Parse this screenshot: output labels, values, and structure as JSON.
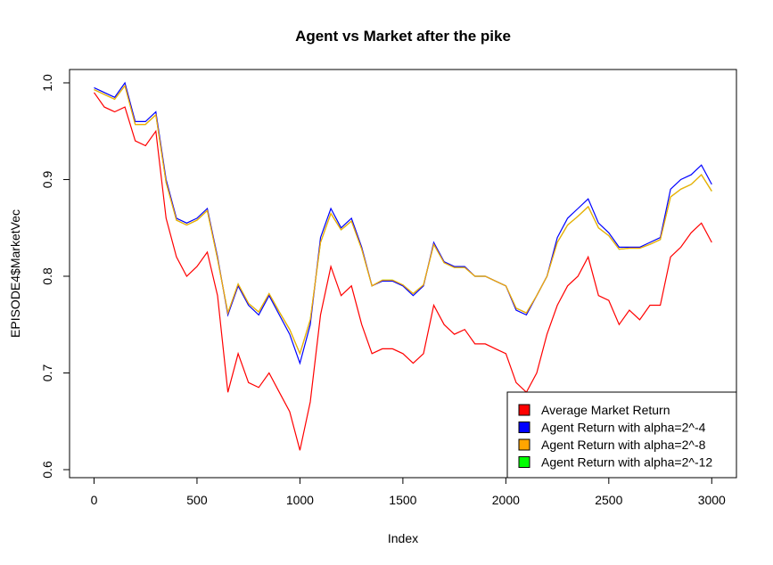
{
  "chart_data": {
    "type": "line",
    "title": "Agent vs Market after the pike",
    "xlabel": "Index",
    "ylabel": "EPISODE4$MarketVec",
    "x": [
      0,
      50,
      100,
      150,
      200,
      250,
      300,
      350,
      400,
      450,
      500,
      550,
      600,
      650,
      700,
      750,
      800,
      850,
      900,
      950,
      1000,
      1050,
      1100,
      1150,
      1200,
      1250,
      1300,
      1350,
      1400,
      1450,
      1500,
      1550,
      1600,
      1650,
      1700,
      1750,
      1800,
      1850,
      1900,
      1950,
      2000,
      2050,
      2100,
      2150,
      2200,
      2250,
      2300,
      2350,
      2400,
      2450,
      2500,
      2550,
      2600,
      2650,
      2700,
      2750,
      2800,
      2850,
      2900,
      2950,
      3000
    ],
    "series": [
      {
        "name": "Average Market Return",
        "color": "#ff0000",
        "values": [
          0.99,
          0.975,
          0.97,
          0.975,
          0.94,
          0.935,
          0.95,
          0.86,
          0.82,
          0.8,
          0.81,
          0.825,
          0.78,
          0.68,
          0.72,
          0.69,
          0.685,
          0.7,
          0.68,
          0.66,
          0.62,
          0.67,
          0.76,
          0.81,
          0.78,
          0.79,
          0.75,
          0.72,
          0.725,
          0.725,
          0.72,
          0.71,
          0.72,
          0.77,
          0.75,
          0.74,
          0.745,
          0.73,
          0.73,
          0.725,
          0.72,
          0.69,
          0.68,
          0.7,
          0.74,
          0.77,
          0.79,
          0.8,
          0.82,
          0.78,
          0.775,
          0.75,
          0.765,
          0.755,
          0.77,
          0.77,
          0.82,
          0.83,
          0.845,
          0.855,
          0.835
        ]
      },
      {
        "name": "Agent Return with alpha=2^-4",
        "color": "#0000ff",
        "values": [
          0.995,
          0.99,
          0.985,
          1.0,
          0.96,
          0.96,
          0.97,
          0.9,
          0.86,
          0.855,
          0.86,
          0.87,
          0.82,
          0.76,
          0.79,
          0.77,
          0.76,
          0.78,
          0.76,
          0.74,
          0.71,
          0.75,
          0.84,
          0.87,
          0.85,
          0.86,
          0.83,
          0.79,
          0.795,
          0.795,
          0.79,
          0.78,
          0.79,
          0.835,
          0.815,
          0.81,
          0.81,
          0.8,
          0.8,
          0.795,
          0.79,
          0.765,
          0.76,
          0.78,
          0.8,
          0.84,
          0.86,
          0.87,
          0.88,
          0.855,
          0.845,
          0.83,
          0.83,
          0.83,
          0.835,
          0.84,
          0.89,
          0.9,
          0.905,
          0.915,
          0.895
        ]
      },
      {
        "name": "Agent Return with alpha=2^-8",
        "color": "#ffa500",
        "values": [
          0.993,
          0.988,
          0.983,
          0.997,
          0.957,
          0.957,
          0.967,
          0.897,
          0.858,
          0.853,
          0.858,
          0.868,
          0.818,
          0.762,
          0.792,
          0.772,
          0.763,
          0.782,
          0.763,
          0.745,
          0.72,
          0.755,
          0.835,
          0.865,
          0.848,
          0.857,
          0.828,
          0.79,
          0.796,
          0.796,
          0.791,
          0.782,
          0.791,
          0.833,
          0.814,
          0.809,
          0.809,
          0.8,
          0.8,
          0.795,
          0.79,
          0.767,
          0.762,
          0.78,
          0.8,
          0.835,
          0.853,
          0.862,
          0.872,
          0.85,
          0.842,
          0.828,
          0.829,
          0.829,
          0.833,
          0.838,
          0.882,
          0.89,
          0.895,
          0.905,
          0.888
        ]
      },
      {
        "name": "Agent Return with alpha=2^-12",
        "color": "#00ff00",
        "values": [
          0.993,
          0.988,
          0.983,
          0.997,
          0.957,
          0.957,
          0.967,
          0.897,
          0.858,
          0.853,
          0.858,
          0.868,
          0.818,
          0.762,
          0.792,
          0.772,
          0.763,
          0.782,
          0.763,
          0.745,
          0.72,
          0.755,
          0.835,
          0.865,
          0.848,
          0.857,
          0.828,
          0.79,
          0.796,
          0.796,
          0.791,
          0.782,
          0.791,
          0.833,
          0.814,
          0.809,
          0.809,
          0.8,
          0.8,
          0.795,
          0.79,
          0.767,
          0.762,
          0.78,
          0.8,
          0.835,
          0.853,
          0.862,
          0.872,
          0.85,
          0.842,
          0.828,
          0.829,
          0.829,
          0.833,
          0.838,
          0.882,
          0.89,
          0.895,
          0.905,
          0.888
        ]
      }
    ],
    "xlim": [
      -119,
      3120
    ],
    "ylim": [
      0.5917,
      1.0138
    ],
    "xticks": [
      0,
      500,
      1000,
      1500,
      2000,
      2500,
      3000
    ],
    "yticks": [
      0.6,
      0.7,
      0.8,
      0.9,
      {
        "value": 1,
        "label": "1.0"
      }
    ],
    "legend": "bottom-right"
  }
}
